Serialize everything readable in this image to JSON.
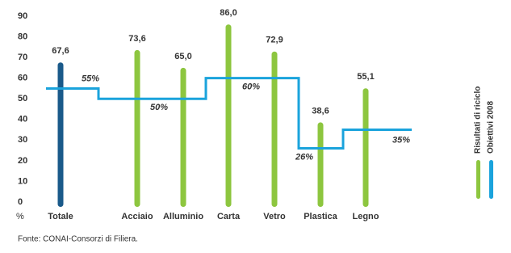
{
  "chart_data": {
    "type": "bar",
    "categories": [
      "Totale",
      "Acciaio",
      "Alluminio",
      "Carta",
      "Vetro",
      "Plastica",
      "Legno"
    ],
    "series": [
      {
        "name": "Risultati di riciclo",
        "color": "#8dc63f",
        "colors": [
          "#1a5a8a",
          "#8dc63f",
          "#8dc63f",
          "#8dc63f",
          "#8dc63f",
          "#8dc63f",
          "#8dc63f"
        ],
        "values": [
          67.6,
          73.6,
          65.0,
          86.0,
          72.9,
          38.6,
          55.1
        ],
        "value_labels": [
          "67,6",
          "73,6",
          "65,0",
          "86,0",
          "72,9",
          "38,6",
          "55,1"
        ]
      }
    ],
    "targets": {
      "name": "Obiettivi 2008",
      "color": "#1aa3dc",
      "values": [
        55,
        50,
        60,
        26,
        35
      ],
      "value_labels": [
        "55%",
        "50%",
        "60%",
        "26%",
        "35%"
      ]
    },
    "y_axis_label": "%",
    "ylim": [
      0,
      90
    ],
    "yticks": [
      0,
      10,
      20,
      30,
      40,
      50,
      60,
      70,
      80,
      90
    ],
    "source": "Fonte: CONAI-Consorzi di Filiera."
  }
}
